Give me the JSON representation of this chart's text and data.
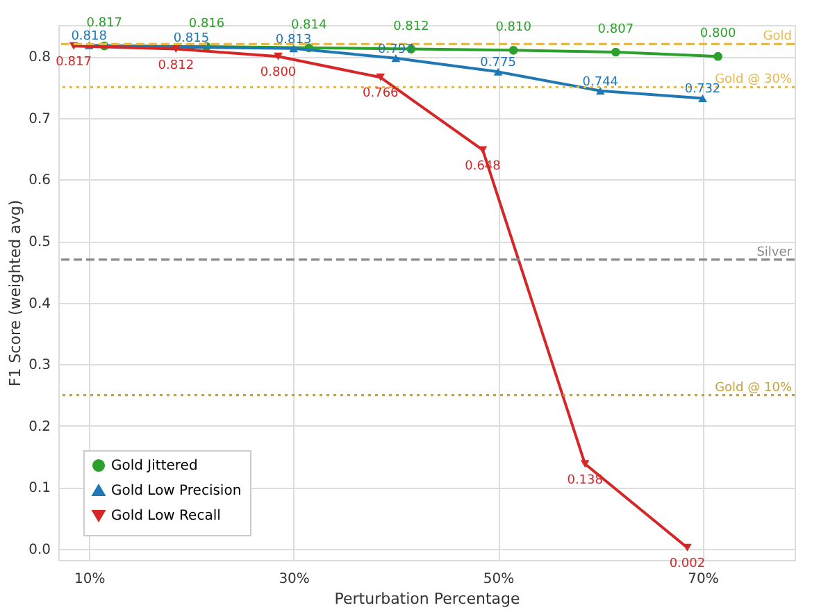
{
  "chart_data": {
    "type": "line",
    "xlabel": "Perturbation Percentage",
    "ylabel": "F1 Score (weighted avg)",
    "xlim": [
      7,
      79
    ],
    "ylim": [
      -0.018,
      0.851
    ],
    "xticks": [
      {
        "value": 10,
        "label": "10%"
      },
      {
        "value": 30,
        "label": "30%"
      },
      {
        "value": 50,
        "label": "50%"
      },
      {
        "value": 70,
        "label": "70%"
      }
    ],
    "yticks": [
      {
        "value": 0,
        "label": "0.0"
      },
      0.1,
      0.2,
      0.3,
      0.4,
      0.5,
      0.6,
      0.7,
      0.8
    ],
    "grid": true,
    "legend": "bottom left",
    "line_style": "solid",
    "data_labels": true,
    "series": [
      {
        "name": "Gold Jittered",
        "color": "#2ca02c",
        "marker": "circle",
        "x": [
          11.5,
          21.5,
          31.5,
          41.5,
          51.5,
          61.5,
          71.5
        ],
        "values": [
          0.817,
          0.816,
          0.814,
          0.812,
          0.81,
          0.807,
          0.8
        ],
        "value_labels": [
          "0.817",
          "0.816",
          "0.814",
          "0.812",
          "0.810",
          "0.807",
          "0.800"
        ]
      },
      {
        "name": "Gold Low Precision",
        "color": "#1f77b4",
        "marker": "triangle",
        "x": [
          10,
          20,
          30,
          40,
          50,
          60,
          70
        ],
        "values": [
          0.818,
          0.815,
          0.813,
          0.797,
          0.775,
          0.744,
          0.732
        ],
        "value_labels": [
          "0.818",
          "0.815",
          "0.813",
          "0.797",
          "0.775",
          "0.744",
          "0.732"
        ]
      },
      {
        "name": "Gold Low Recall",
        "color": "#d62728",
        "marker": "triangle-down",
        "x": [
          8.5,
          18.5,
          28.5,
          38.5,
          48.5,
          58.5,
          68.5
        ],
        "values": [
          0.817,
          0.812,
          0.8,
          0.766,
          0.648,
          0.138,
          0.002
        ],
        "value_labels": [
          "0.817",
          "0.812",
          "0.800",
          "0.766",
          "0.648",
          "0.138",
          "0.002"
        ]
      }
    ],
    "ref_lines": [
      {
        "axis": "y",
        "value": 0.82,
        "label": "Gold",
        "color": "#e6b84d",
        "line_style": "dashed"
      },
      {
        "axis": "y",
        "value": 0.75,
        "label": "Gold @ 30%",
        "color": "#e6b84d",
        "line_style": "dotted"
      },
      {
        "axis": "y",
        "value": 0.47,
        "label": "Silver",
        "color": "#888888",
        "line_style": "dashed"
      },
      {
        "axis": "y",
        "value": 0.25,
        "label": "Gold @ 10%",
        "color": "#c8a23c",
        "line_style": "dotted"
      }
    ]
  }
}
